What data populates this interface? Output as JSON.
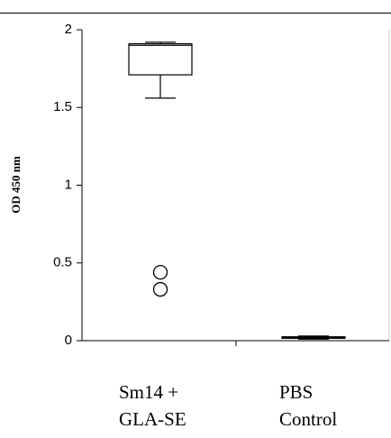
{
  "chart_data": {
    "type": "box",
    "title": "",
    "xlabel": "",
    "ylabel": "OD 450 nm",
    "ylim": [
      0,
      2
    ],
    "yticks": [
      {
        "value": 0,
        "label": "0"
      },
      {
        "value": 0.5,
        "label": "0.5"
      },
      {
        "value": 1,
        "label": "1"
      },
      {
        "value": 1.5,
        "label": "1.5"
      },
      {
        "value": 2,
        "label": "2"
      }
    ],
    "grid": false,
    "categories": [
      {
        "line1": "Sm14 +",
        "line2": "GLA-SE"
      },
      {
        "line1": "PBS",
        "line2": "Control"
      }
    ],
    "boxes": [
      {
        "min": 1.56,
        "q1": 1.71,
        "median": 1.9,
        "q3": 1.91,
        "max": 1.92,
        "outliers": [
          0.44,
          0.33
        ]
      },
      {
        "min": 0.01,
        "q1": 0.015,
        "median": 0.02,
        "q3": 0.025,
        "max": 0.03,
        "outliers": []
      }
    ]
  }
}
